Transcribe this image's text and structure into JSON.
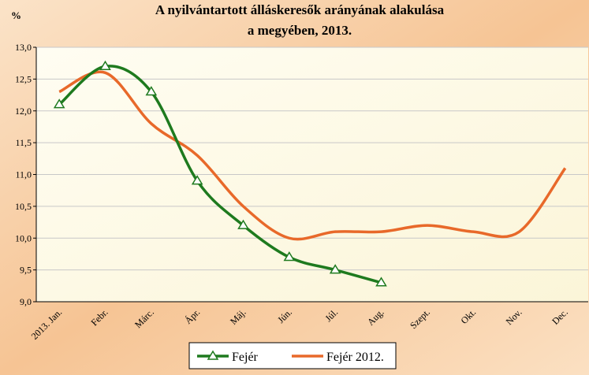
{
  "chart_data": {
    "type": "line",
    "title": [
      "A nyilvántartott álláskeresők arányának alakulása",
      "a megyében, 2013."
    ],
    "y_label": "%",
    "categories": [
      "2013. Jan.",
      "Febr.",
      "Márc.",
      "Ápr.",
      "Máj.",
      "Jún.",
      "Júl.",
      "Aug.",
      "Szept.",
      "Okt.",
      "Nov.",
      "Dec."
    ],
    "series": [
      {
        "name": "Fejér",
        "color": "#1e7a1e",
        "marker": "triangle",
        "values": [
          12.1,
          12.7,
          12.3,
          10.9,
          10.2,
          9.7,
          9.5,
          9.3,
          null,
          null,
          null,
          null
        ]
      },
      {
        "name": "Fejér 2012.",
        "color": "#e8692a",
        "values": [
          12.3,
          12.6,
          11.8,
          11.3,
          10.5,
          10.0,
          10.1,
          10.1,
          10.2,
          10.1,
          10.1,
          11.1
        ]
      }
    ],
    "ylim": [
      9,
      13
    ],
    "yticks": [
      {
        "value": 9,
        "label": "9,0"
      },
      {
        "value": 9.5,
        "label": "9,5"
      },
      {
        "value": 10,
        "label": "10,0"
      },
      {
        "value": 10.5,
        "label": "10,5"
      },
      {
        "value": 11,
        "label": "11,0"
      },
      {
        "value": 11.5,
        "label": "11,5"
      },
      {
        "value": 12,
        "label": "12,0"
      },
      {
        "value": 12.5,
        "label": "12,5"
      },
      {
        "value": 13,
        "label": "13,0"
      }
    ],
    "grid": true
  }
}
